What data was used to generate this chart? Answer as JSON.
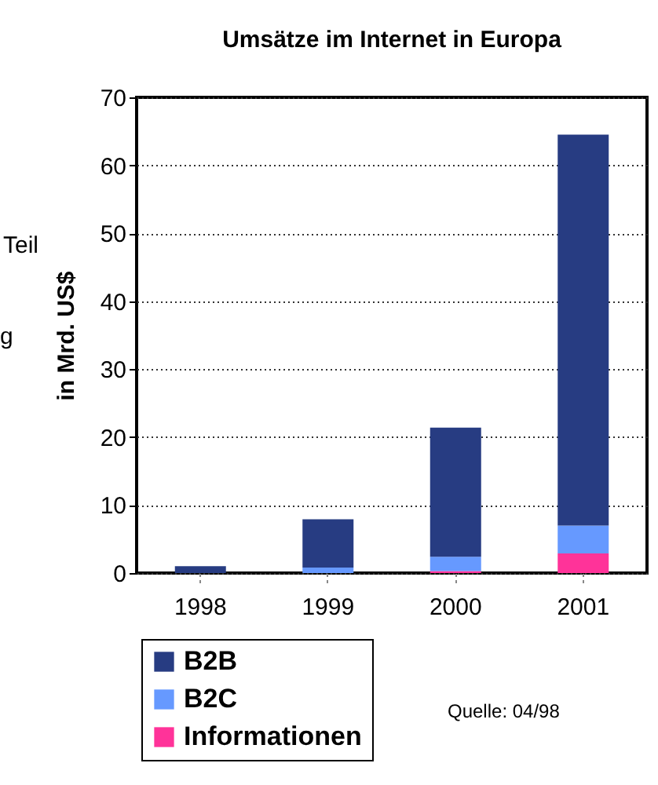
{
  "chart_data": {
    "type": "bar",
    "title": "Umsätze im Internet in Europa",
    "ylabel": "in Mrd. US$",
    "categories": [
      "1998",
      "1999",
      "2000",
      "2001"
    ],
    "stacked": true,
    "series": [
      {
        "name": "Informationen",
        "color": "#ff3399",
        "values": [
          0,
          0,
          0.3,
          2.9
        ]
      },
      {
        "name": "B2C",
        "color": "#6699ff",
        "values": [
          0,
          0.8,
          2.1,
          4.1
        ]
      },
      {
        "name": "B2B",
        "color": "#273c82",
        "values": [
          1.0,
          7.1,
          19.0,
          57.5
        ]
      }
    ],
    "ylim": [
      0,
      70
    ],
    "yticks": [
      0,
      10,
      20,
      30,
      40,
      50,
      60,
      70
    ],
    "grid": "y",
    "legend": "bottom left",
    "annotations": [
      "Teil",
      "g",
      "Quelle: 04/98"
    ]
  }
}
